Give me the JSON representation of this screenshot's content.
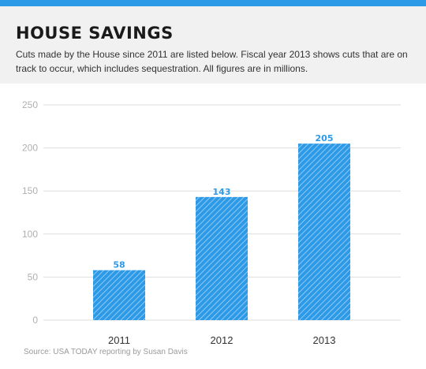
{
  "colors": {
    "accent": "#2d9ae8",
    "header_bg": "#f1f1f1",
    "bar": "#2d9ae8",
    "bar_hatch": "#a8d4f6",
    "gridline": "#dddddd",
    "axis_label": "#b0b0b0",
    "value_label": "#2d9ae8"
  },
  "header": {
    "title": "HOUSE SAVINGS",
    "subtitle": "Cuts made by the House since 2011 are listed below. Fiscal year 2013 shows cuts that are on track to occur, which includes sequestration. All figures are in millions."
  },
  "source": "Source: USA TODAY reporting by Susan Davis",
  "chart_data": {
    "type": "bar",
    "categories": [
      "2011",
      "2012",
      "2013"
    ],
    "values": [
      58,
      143,
      205
    ],
    "data_labels": [
      "58",
      "143",
      "205"
    ],
    "ylim": [
      0,
      250
    ],
    "yticks": [
      0,
      50,
      100,
      150,
      200,
      250
    ],
    "grid": true,
    "legend": "none"
  }
}
